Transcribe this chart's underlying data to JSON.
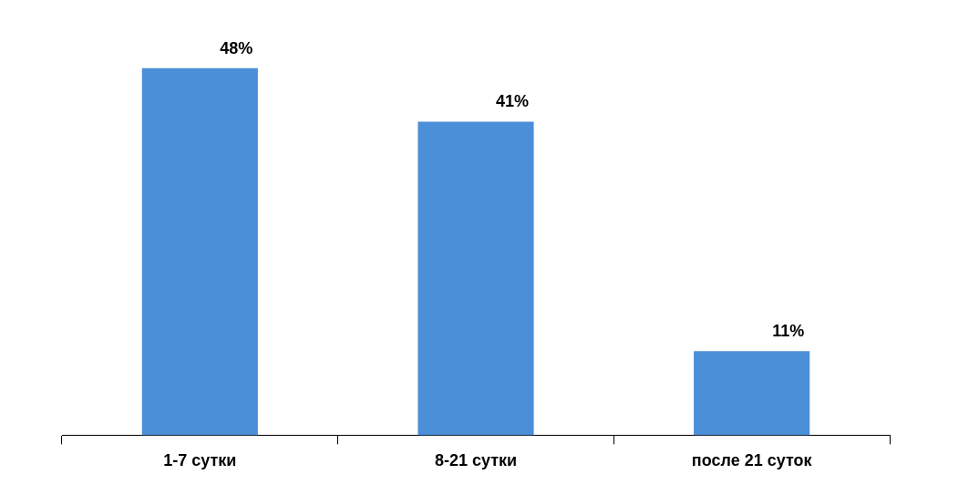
{
  "chart_data": {
    "type": "bar",
    "categories": [
      "1-7 сутки",
      "8-21 сутки",
      "после 21 суток"
    ],
    "values": [
      48,
      41,
      11
    ],
    "color": "#4a8fd8",
    "value_labels": [
      "48%",
      "41%",
      "11%"
    ],
    "grid": false,
    "legend": false
  }
}
